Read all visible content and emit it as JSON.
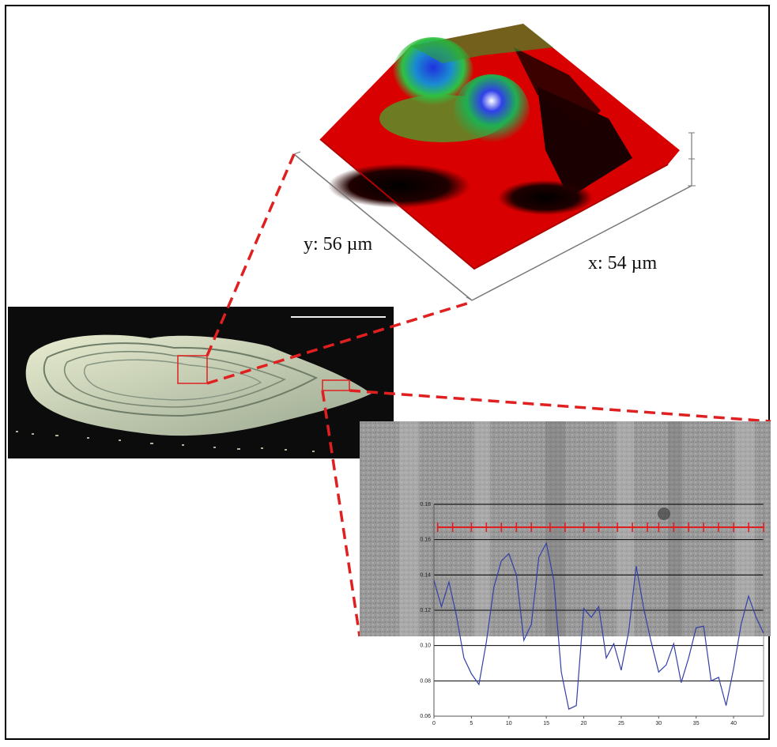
{
  "surface_panel": {
    "y_label": "y: 56 µm",
    "x_label": "x: 54 µm"
  },
  "chart_data": {
    "type": "line",
    "x_ticks": [
      "0",
      "5",
      "10",
      "15",
      "20",
      "25",
      "30",
      "35",
      "40"
    ],
    "y_ticks": [
      "0.06",
      "0.08",
      "0.10",
      "0.12",
      "0.14",
      "0.16",
      "0.18"
    ],
    "xlabel": "",
    "ylabel": "",
    "xlim": [
      0,
      44
    ],
    "ylim": [
      0.06,
      0.18
    ],
    "colors": {
      "series": "#3340a8",
      "marks": "#e02020",
      "grid": "#000000"
    },
    "series": [
      {
        "x": [
          0,
          1,
          2,
          3,
          4,
          5,
          6,
          7,
          8,
          9,
          10,
          11,
          12,
          13,
          14,
          15,
          16,
          17,
          18,
          19,
          20,
          21,
          22,
          23,
          24,
          25,
          26,
          27,
          28,
          29,
          30,
          31,
          32,
          33,
          34,
          35,
          36,
          37,
          38,
          39,
          40,
          41,
          42,
          43,
          44
        ],
        "values": [
          0.137,
          0.122,
          0.136,
          0.117,
          0.093,
          0.084,
          0.078,
          0.102,
          0.133,
          0.148,
          0.152,
          0.14,
          0.103,
          0.112,
          0.15,
          0.158,
          0.137,
          0.085,
          0.064,
          0.066,
          0.121,
          0.116,
          0.122,
          0.093,
          0.101,
          0.086,
          0.108,
          0.145,
          0.121,
          0.102,
          0.085,
          0.089,
          0.101,
          0.079,
          0.093,
          0.11,
          0.111,
          0.08,
          0.082,
          0.066,
          0.087,
          0.112,
          0.128,
          0.116,
          0.107
        ]
      }
    ],
    "marks_y": 0.167,
    "marks_x": [
      0.5,
      2.5,
      5,
      7,
      9,
      11,
      13,
      15.5,
      17.5,
      20,
      22,
      24.5,
      26.5,
      28.5,
      30,
      32,
      34,
      36,
      38,
      40,
      42,
      44
    ]
  }
}
